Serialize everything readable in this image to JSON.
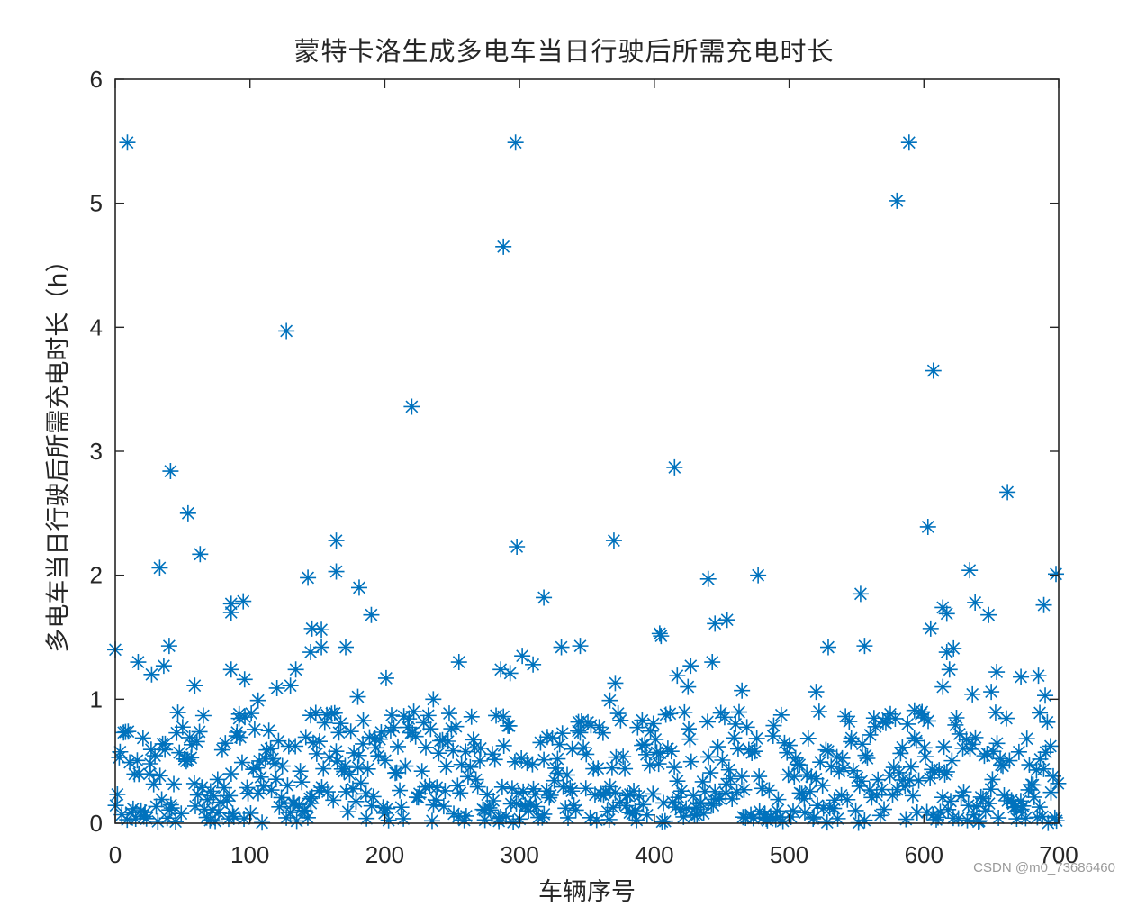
{
  "chart_data": {
    "type": "scatter",
    "title": "蒙特卡洛生成多电车当日行驶后所需充电时长",
    "xlabel": "车辆序号",
    "ylabel": "多电车当日行驶后所需充电时长（h）",
    "xlim": [
      0,
      700
    ],
    "ylim": [
      0,
      6
    ],
    "xticks": [
      0,
      100,
      200,
      300,
      400,
      500,
      600,
      700
    ],
    "yticks": [
      0,
      1,
      2,
      3,
      4,
      5,
      6
    ],
    "grid": false,
    "legend": null,
    "marker": "asterisk",
    "marker_color": "#0072BD",
    "axis_color": "#262626",
    "point_count_approx": 700,
    "series": [
      {
        "name": "charging_time_h",
        "notable_points": [
          {
            "x": 9,
            "y": 5.49
          },
          {
            "x": 297,
            "y": 5.49
          },
          {
            "x": 589,
            "y": 5.49
          },
          {
            "x": 580,
            "y": 5.02
          },
          {
            "x": 288,
            "y": 4.65
          },
          {
            "x": 127,
            "y": 3.97
          },
          {
            "x": 607,
            "y": 3.65
          },
          {
            "x": 220,
            "y": 3.36
          },
          {
            "x": 415,
            "y": 2.87
          },
          {
            "x": 41,
            "y": 2.84
          },
          {
            "x": 662,
            "y": 2.67
          },
          {
            "x": 54,
            "y": 2.5
          },
          {
            "x": 603,
            "y": 2.39
          },
          {
            "x": 164,
            "y": 2.28
          },
          {
            "x": 370,
            "y": 2.28
          },
          {
            "x": 298,
            "y": 2.23
          },
          {
            "x": 63,
            "y": 2.17
          },
          {
            "x": 33,
            "y": 2.06
          },
          {
            "x": 634,
            "y": 2.04
          },
          {
            "x": 164,
            "y": 2.03
          },
          {
            "x": 698,
            "y": 2.01
          },
          {
            "x": 477,
            "y": 2.0
          },
          {
            "x": 143,
            "y": 1.98
          },
          {
            "x": 440,
            "y": 1.97
          },
          {
            "x": 181,
            "y": 1.9
          },
          {
            "x": 553,
            "y": 1.85
          },
          {
            "x": 318,
            "y": 1.82
          },
          {
            "x": 95,
            "y": 1.79
          },
          {
            "x": 638,
            "y": 1.78
          },
          {
            "x": 86,
            "y": 1.77
          },
          {
            "x": 689,
            "y": 1.76
          },
          {
            "x": 614,
            "y": 1.74
          },
          {
            "x": 86,
            "y": 1.7
          },
          {
            "x": 617,
            "y": 1.69
          },
          {
            "x": 190,
            "y": 1.68
          },
          {
            "x": 648,
            "y": 1.68
          },
          {
            "x": 454,
            "y": 1.64
          },
          {
            "x": 445,
            "y": 1.61
          },
          {
            "x": 146,
            "y": 1.57
          },
          {
            "x": 153,
            "y": 1.56
          },
          {
            "x": 605,
            "y": 1.57
          },
          {
            "x": 404,
            "y": 1.53
          },
          {
            "x": 405,
            "y": 1.51
          },
          {
            "x": 0,
            "y": 1.4
          },
          {
            "x": 40,
            "y": 1.43
          },
          {
            "x": 153,
            "y": 1.42
          },
          {
            "x": 171,
            "y": 1.42
          },
          {
            "x": 331,
            "y": 1.42
          },
          {
            "x": 345,
            "y": 1.43
          },
          {
            "x": 556,
            "y": 1.43
          },
          {
            "x": 529,
            "y": 1.42
          },
          {
            "x": 617,
            "y": 1.38
          },
          {
            "x": 622,
            "y": 1.41
          },
          {
            "x": 145,
            "y": 1.38
          },
          {
            "x": 302,
            "y": 1.35
          },
          {
            "x": 17,
            "y": 1.3
          },
          {
            "x": 36,
            "y": 1.27
          },
          {
            "x": 255,
            "y": 1.3
          },
          {
            "x": 310,
            "y": 1.28
          },
          {
            "x": 443,
            "y": 1.3
          },
          {
            "x": 427,
            "y": 1.27
          },
          {
            "x": 86,
            "y": 1.24
          },
          {
            "x": 134,
            "y": 1.24
          },
          {
            "x": 286,
            "y": 1.24
          },
          {
            "x": 293,
            "y": 1.21
          },
          {
            "x": 27,
            "y": 1.2
          },
          {
            "x": 96,
            "y": 1.16
          },
          {
            "x": 201,
            "y": 1.17
          },
          {
            "x": 371,
            "y": 1.13
          },
          {
            "x": 417,
            "y": 1.19
          },
          {
            "x": 654,
            "y": 1.22
          },
          {
            "x": 672,
            "y": 1.18
          },
          {
            "x": 685,
            "y": 1.19
          },
          {
            "x": 619,
            "y": 1.24
          },
          {
            "x": 59,
            "y": 1.11
          },
          {
            "x": 120,
            "y": 1.09
          },
          {
            "x": 130,
            "y": 1.11
          },
          {
            "x": 425,
            "y": 1.1
          },
          {
            "x": 614,
            "y": 1.1
          },
          {
            "x": 465,
            "y": 1.07
          },
          {
            "x": 520,
            "y": 1.06
          },
          {
            "x": 650,
            "y": 1.06
          },
          {
            "x": 690,
            "y": 1.03
          },
          {
            "x": 636,
            "y": 1.04
          },
          {
            "x": 236,
            "y": 1.0
          },
          {
            "x": 180,
            "y": 1.02
          },
          {
            "x": 106,
            "y": 0.99
          },
          {
            "x": 367,
            "y": 0.99
          },
          {
            "x": 593,
            "y": 0.91
          },
          {
            "x": 288,
            "y": 0.86
          },
          {
            "x": 92,
            "y": 0.88
          },
          {
            "x": 145,
            "y": 0.87
          },
          {
            "x": 391,
            "y": 0.83
          },
          {
            "x": 686,
            "y": 0.89
          },
          {
            "x": 600,
            "y": 0.85
          }
        ],
        "dense_band": {
          "y_range": [
            0.0,
            0.9
          ],
          "x_range": [
            0,
            700
          ],
          "description": "Majority of ~700 vehicles fall between 0 and 0.9 h, most concentrated below 0.6 h"
        }
      }
    ]
  },
  "figure": {
    "title": "蒙特卡洛生成多电车当日行驶后所需充电时长",
    "y_axis_label": "多电车当日行驶后所需充电时长（h）",
    "x_axis_label": "车辆序号",
    "x_tick_labels": [
      "0",
      "100",
      "200",
      "300",
      "400",
      "500",
      "600",
      "700"
    ],
    "y_tick_labels": [
      "0",
      "1",
      "2",
      "3",
      "4",
      "5",
      "6"
    ]
  },
  "watermark": "CSDN @m0_73686460"
}
